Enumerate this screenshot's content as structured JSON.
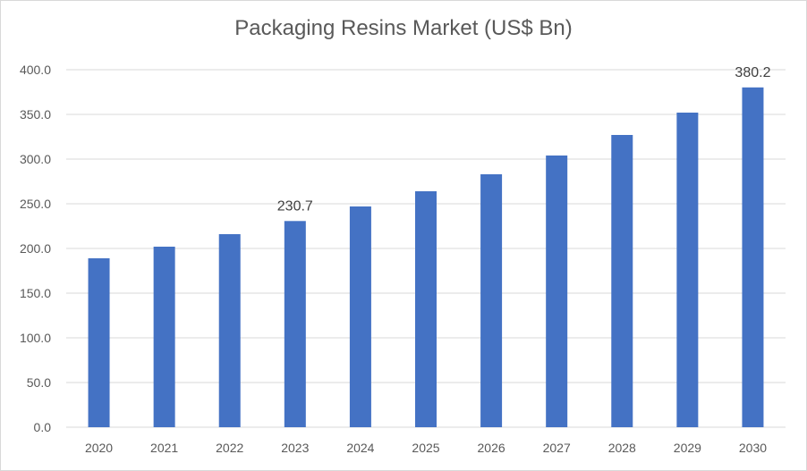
{
  "chart_data": {
    "type": "bar",
    "title": "Packaging Resins Market (US$ Bn)",
    "xlabel": "",
    "ylabel": "",
    "categories": [
      "2020",
      "2021",
      "2022",
      "2023",
      "2024",
      "2025",
      "2026",
      "2027",
      "2028",
      "2029",
      "2030"
    ],
    "values": [
      189.0,
      202.0,
      216.0,
      230.7,
      247.0,
      264.0,
      283.0,
      304.0,
      327.0,
      352.0,
      380.2
    ],
    "data_labels": [
      {
        "category": "2023",
        "text": "230.7"
      },
      {
        "category": "2030",
        "text": "380.2"
      }
    ],
    "ylim": [
      0,
      400
    ],
    "yticks": [
      "0.0",
      "50.0",
      "100.0",
      "150.0",
      "200.0",
      "250.0",
      "300.0",
      "350.0",
      "400.0"
    ],
    "grid": true,
    "legend": "none",
    "bar_color": "#4472c4",
    "grid_color": "#d9d9d9"
  }
}
